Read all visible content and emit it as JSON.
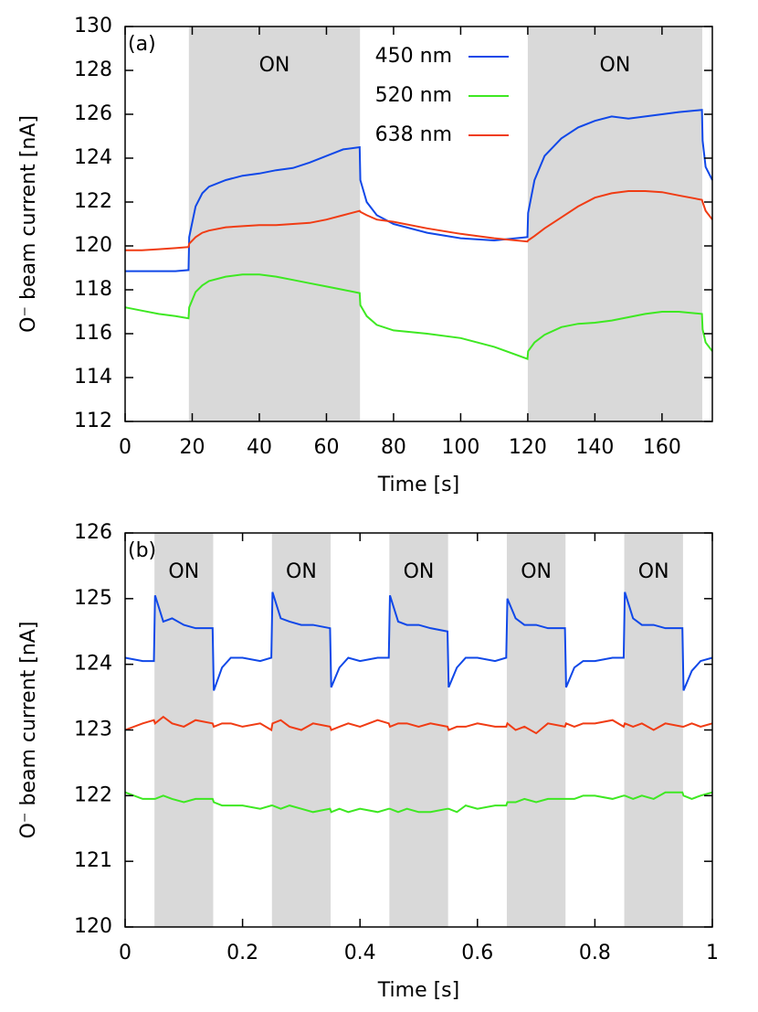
{
  "chart_data": [
    {
      "type": "line",
      "panel_label": "(a)",
      "xlabel": "Time [s]",
      "ylabel": "O⁻ beam current [nA]",
      "xlim": [
        0,
        175
      ],
      "xticks": [
        0,
        20,
        40,
        60,
        80,
        100,
        120,
        140,
        160
      ],
      "ylim": [
        112,
        130
      ],
      "yticks": [
        112,
        114,
        116,
        118,
        120,
        122,
        124,
        126,
        128,
        130
      ],
      "legend": "top-center",
      "shaded_regions": [
        {
          "start": 19,
          "end": 70,
          "label": "ON"
        },
        {
          "start": 120,
          "end": 172,
          "label": "ON"
        }
      ],
      "x": [
        0,
        5,
        10,
        15,
        18.9,
        19.1,
        21,
        23,
        25,
        30,
        35,
        40,
        45,
        50,
        55,
        60,
        65,
        69.9,
        70.1,
        72,
        75,
        80,
        90,
        100,
        110,
        119.9,
        120.1,
        122,
        125,
        130,
        135,
        140,
        145,
        150,
        155,
        160,
        165,
        171.9,
        172.1,
        173,
        175
      ],
      "series": [
        {
          "name": "450 nm",
          "color": "#1048e8",
          "values": [
            118.85,
            118.85,
            118.85,
            118.85,
            118.9,
            120.4,
            121.8,
            122.4,
            122.7,
            123.0,
            123.2,
            123.3,
            123.45,
            123.55,
            123.8,
            124.1,
            124.4,
            124.5,
            123.0,
            122.0,
            121.4,
            121.0,
            120.6,
            120.35,
            120.25,
            120.4,
            121.5,
            123.0,
            124.1,
            124.9,
            125.4,
            125.7,
            125.9,
            125.8,
            125.9,
            126.0,
            126.1,
            126.2,
            124.8,
            123.6,
            123.0
          ]
        },
        {
          "name": "520 nm",
          "color": "#3ee822",
          "values": [
            117.2,
            117.05,
            116.9,
            116.8,
            116.7,
            117.2,
            117.9,
            118.2,
            118.4,
            118.6,
            118.7,
            118.7,
            118.6,
            118.45,
            118.3,
            118.15,
            118.0,
            117.85,
            117.3,
            116.8,
            116.4,
            116.15,
            116.0,
            115.8,
            115.4,
            114.85,
            115.2,
            115.6,
            115.95,
            116.3,
            116.45,
            116.5,
            116.6,
            116.75,
            116.9,
            117.0,
            117.0,
            116.9,
            116.2,
            115.6,
            115.2
          ]
        },
        {
          "name": "638 nm",
          "color": "#f03c14",
          "values": [
            119.8,
            119.8,
            119.85,
            119.9,
            119.95,
            120.1,
            120.4,
            120.6,
            120.7,
            120.85,
            120.9,
            120.95,
            120.95,
            121.0,
            121.05,
            121.2,
            121.4,
            121.6,
            121.55,
            121.4,
            121.2,
            121.1,
            120.8,
            120.55,
            120.35,
            120.2,
            120.25,
            120.45,
            120.8,
            121.3,
            121.8,
            122.2,
            122.4,
            122.5,
            122.5,
            122.45,
            122.3,
            122.1,
            122.0,
            121.6,
            121.2
          ]
        }
      ]
    },
    {
      "type": "line",
      "panel_label": "(b)",
      "xlabel": "Time [s]",
      "ylabel": "O⁻ beam current [nA]",
      "xlim": [
        0,
        1
      ],
      "xticks": [
        0,
        0.2,
        0.4,
        0.6,
        0.8,
        1
      ],
      "ylim": [
        120,
        126
      ],
      "yticks": [
        120,
        121,
        122,
        123,
        124,
        125,
        126
      ],
      "shaded_regions": [
        {
          "start": 0.05,
          "end": 0.15,
          "label": "ON"
        },
        {
          "start": 0.25,
          "end": 0.35,
          "label": "ON"
        },
        {
          "start": 0.45,
          "end": 0.55,
          "label": "ON"
        },
        {
          "start": 0.65,
          "end": 0.75,
          "label": "ON"
        },
        {
          "start": 0.85,
          "end": 0.95,
          "label": "ON"
        }
      ],
      "x": [
        0,
        0.03,
        0.049,
        0.051,
        0.065,
        0.08,
        0.1,
        0.12,
        0.149,
        0.151,
        0.165,
        0.18,
        0.2,
        0.23,
        0.249,
        0.251,
        0.265,
        0.28,
        0.3,
        0.32,
        0.349,
        0.351,
        0.365,
        0.38,
        0.4,
        0.43,
        0.449,
        0.451,
        0.465,
        0.48,
        0.5,
        0.52,
        0.549,
        0.551,
        0.565,
        0.58,
        0.6,
        0.63,
        0.649,
        0.651,
        0.665,
        0.68,
        0.7,
        0.72,
        0.749,
        0.751,
        0.765,
        0.78,
        0.8,
        0.83,
        0.849,
        0.851,
        0.865,
        0.88,
        0.9,
        0.92,
        0.949,
        0.951,
        0.965,
        0.98,
        1
      ],
      "series": [
        {
          "color": "#1048e8",
          "values": [
            124.1,
            124.05,
            124.05,
            125.05,
            124.65,
            124.7,
            124.6,
            124.55,
            124.55,
            123.6,
            123.95,
            124.1,
            124.1,
            124.05,
            124.1,
            125.1,
            124.7,
            124.65,
            124.6,
            124.6,
            124.55,
            123.65,
            123.95,
            124.1,
            124.05,
            124.1,
            124.1,
            125.05,
            124.65,
            124.6,
            124.6,
            124.55,
            124.5,
            123.65,
            123.95,
            124.1,
            124.1,
            124.05,
            124.1,
            125.0,
            124.7,
            124.6,
            124.6,
            124.55,
            124.55,
            123.65,
            123.95,
            124.05,
            124.05,
            124.1,
            124.1,
            125.1,
            124.7,
            124.6,
            124.6,
            124.55,
            124.55,
            123.6,
            123.9,
            124.05,
            124.1
          ]
        },
        {
          "color": "#f03c14",
          "values": [
            123.0,
            123.1,
            123.15,
            123.1,
            123.2,
            123.1,
            123.05,
            123.15,
            123.1,
            123.05,
            123.1,
            123.1,
            123.05,
            123.1,
            123.0,
            123.1,
            123.15,
            123.05,
            123.0,
            123.1,
            123.05,
            123.0,
            123.05,
            123.1,
            123.05,
            123.15,
            123.1,
            123.05,
            123.1,
            123.1,
            123.05,
            123.1,
            123.05,
            123.0,
            123.05,
            123.05,
            123.1,
            123.05,
            123.05,
            123.1,
            123.0,
            123.05,
            122.95,
            123.1,
            123.05,
            123.1,
            123.05,
            123.1,
            123.1,
            123.15,
            123.05,
            123.1,
            123.05,
            123.1,
            123.0,
            123.1,
            123.05,
            123.05,
            123.1,
            123.05,
            123.1
          ]
        },
        {
          "color": "#3ee822",
          "values": [
            122.05,
            121.95,
            121.95,
            121.95,
            122.0,
            121.95,
            121.9,
            121.95,
            121.95,
            121.9,
            121.85,
            121.85,
            121.85,
            121.8,
            121.85,
            121.85,
            121.8,
            121.85,
            121.8,
            121.75,
            121.8,
            121.75,
            121.8,
            121.75,
            121.8,
            121.75,
            121.8,
            121.8,
            121.75,
            121.8,
            121.75,
            121.75,
            121.8,
            121.8,
            121.75,
            121.85,
            121.8,
            121.85,
            121.85,
            121.9,
            121.9,
            121.95,
            121.9,
            121.95,
            121.95,
            121.95,
            121.95,
            122.0,
            122.0,
            121.95,
            122.0,
            122.0,
            121.95,
            122.0,
            121.95,
            122.05,
            122.05,
            122.0,
            121.95,
            122.0,
            122.05
          ]
        }
      ]
    }
  ]
}
